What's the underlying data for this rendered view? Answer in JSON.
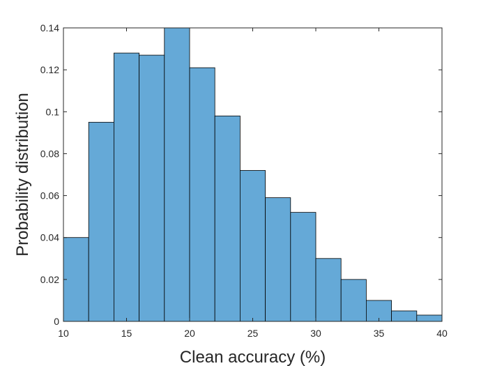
{
  "chart_data": {
    "type": "bar",
    "subtype": "histogram",
    "xlabel": "Clean accuracy (%)",
    "ylabel": "Probability distribution",
    "xlim": [
      10,
      40
    ],
    "ylim": [
      0,
      0.14
    ],
    "xticks": [
      10,
      15,
      20,
      25,
      30,
      35,
      40
    ],
    "yticks": [
      0,
      0.02,
      0.04,
      0.06,
      0.08,
      0.1,
      0.12,
      0.14
    ],
    "yticklabels": [
      "0",
      "0.02",
      "0.04",
      "0.06",
      "0.08",
      "0.1",
      "0.12",
      "0.14"
    ],
    "bin_edges": [
      10,
      12,
      14,
      16,
      18,
      20,
      22,
      24,
      26,
      28,
      30,
      32,
      34,
      36,
      38,
      40
    ],
    "values": [
      0.04,
      0.095,
      0.128,
      0.127,
      0.14,
      0.121,
      0.098,
      0.072,
      0.059,
      0.052,
      0.03,
      0.02,
      0.01,
      0.005,
      0.003
    ],
    "bar_color": "#65a9d7",
    "edge_color": "#000000",
    "grid": false,
    "box": true
  }
}
